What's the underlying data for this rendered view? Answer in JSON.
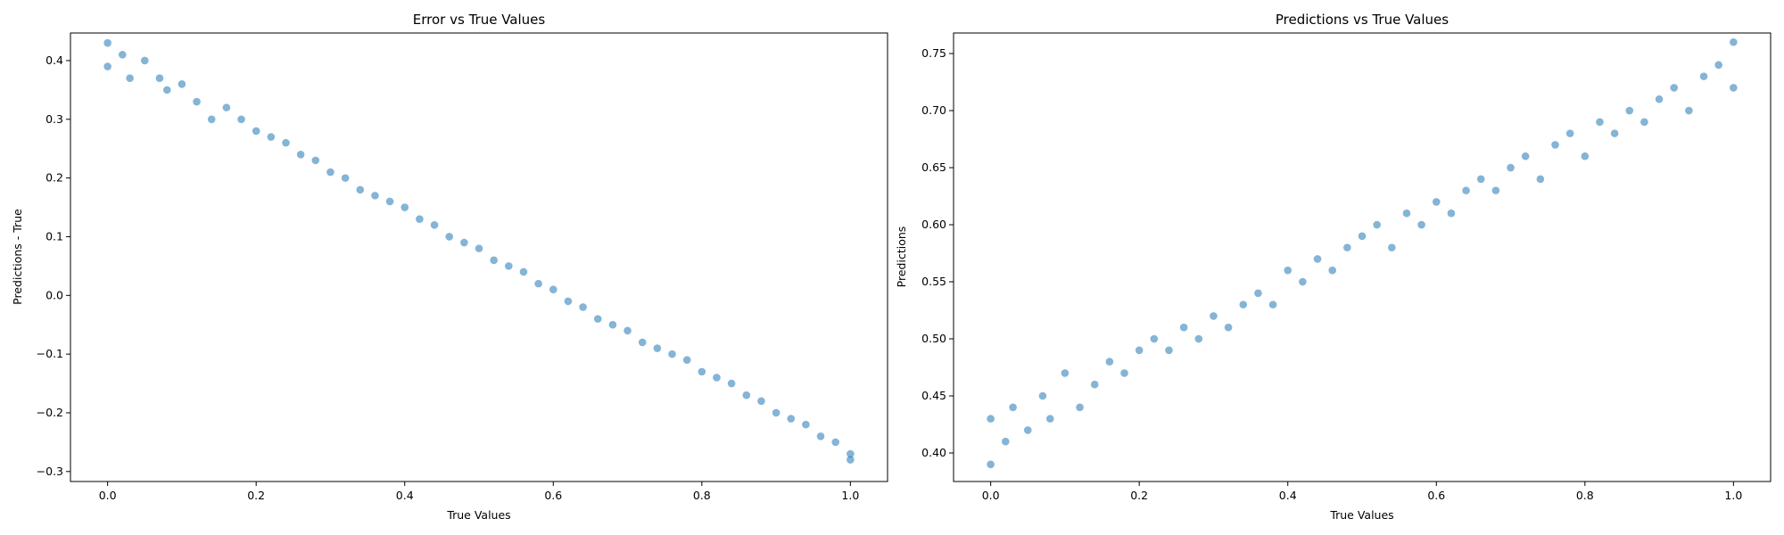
{
  "chart_data": [
    {
      "type": "scatter",
      "title": "Error vs True Values",
      "xlabel": "True Values",
      "ylabel": "Predictions - True",
      "xlim": [
        -0.05,
        1.05
      ],
      "ylim": [
        -0.317,
        0.447
      ],
      "xticks": [
        0.0,
        0.2,
        0.4,
        0.6,
        0.8,
        1.0
      ],
      "xtick_labels": [
        "0.0",
        "0.2",
        "0.4",
        "0.6",
        "0.8",
        "1.0"
      ],
      "yticks": [
        -0.3,
        -0.2,
        -0.1,
        0.0,
        0.1,
        0.2,
        0.3,
        0.4
      ],
      "ytick_labels": [
        "−0.3",
        "−0.2",
        "−0.1",
        "0.0",
        "0.1",
        "0.2",
        "0.3",
        "0.4"
      ],
      "grid": false,
      "point_color": "#1f77b4",
      "point_alpha": 0.55,
      "series": [
        {
          "x": [
            0.0,
            0.0,
            0.02,
            0.03,
            0.05,
            0.07,
            0.08,
            0.1,
            0.12,
            0.14,
            0.16,
            0.18,
            0.2,
            0.22,
            0.24,
            0.26,
            0.28,
            0.3,
            0.32,
            0.34,
            0.36,
            0.38,
            0.4,
            0.42,
            0.44,
            0.46,
            0.48,
            0.5,
            0.52,
            0.54,
            0.56,
            0.58,
            0.6,
            0.62,
            0.64,
            0.66,
            0.68,
            0.7,
            0.72,
            0.74,
            0.76,
            0.78,
            0.8,
            0.82,
            0.84,
            0.86,
            0.88,
            0.9,
            0.92,
            0.94,
            0.96,
            0.98,
            1.0,
            1.0
          ],
          "y": [
            0.43,
            0.39,
            0.41,
            0.37,
            0.4,
            0.37,
            0.35,
            0.36,
            0.33,
            0.3,
            0.32,
            0.3,
            0.28,
            0.27,
            0.26,
            0.24,
            0.23,
            0.21,
            0.2,
            0.18,
            0.17,
            0.16,
            0.15,
            0.13,
            0.12,
            0.1,
            0.09,
            0.08,
            0.06,
            0.05,
            0.04,
            0.02,
            0.01,
            -0.01,
            -0.02,
            -0.04,
            -0.05,
            -0.06,
            -0.08,
            -0.09,
            -0.1,
            -0.11,
            -0.13,
            -0.14,
            -0.15,
            -0.17,
            -0.18,
            -0.2,
            -0.21,
            -0.22,
            -0.24,
            -0.25,
            -0.27,
            -0.28
          ]
        }
      ]
    },
    {
      "type": "scatter",
      "title": "Predictions vs True Values",
      "xlabel": "True Values",
      "ylabel": "Predictions",
      "xlim": [
        -0.05,
        1.05
      ],
      "ylim": [
        0.375,
        0.768
      ],
      "xticks": [
        0.0,
        0.2,
        0.4,
        0.6,
        0.8,
        1.0
      ],
      "xtick_labels": [
        "0.0",
        "0.2",
        "0.4",
        "0.6",
        "0.8",
        "1.0"
      ],
      "yticks": [
        0.4,
        0.45,
        0.5,
        0.55,
        0.6,
        0.65,
        0.7,
        0.75
      ],
      "ytick_labels": [
        "0.40",
        "0.45",
        "0.50",
        "0.55",
        "0.60",
        "0.65",
        "0.70",
        "0.75"
      ],
      "grid": false,
      "point_color": "#1f77b4",
      "point_alpha": 0.55,
      "series": [
        {
          "x": [
            0.0,
            0.0,
            0.02,
            0.03,
            0.05,
            0.07,
            0.08,
            0.1,
            0.12,
            0.14,
            0.16,
            0.18,
            0.2,
            0.22,
            0.24,
            0.26,
            0.28,
            0.3,
            0.32,
            0.34,
            0.36,
            0.38,
            0.4,
            0.42,
            0.44,
            0.46,
            0.48,
            0.5,
            0.52,
            0.54,
            0.56,
            0.58,
            0.6,
            0.62,
            0.64,
            0.66,
            0.68,
            0.7,
            0.72,
            0.74,
            0.76,
            0.78,
            0.8,
            0.82,
            0.84,
            0.86,
            0.88,
            0.9,
            0.92,
            0.94,
            0.96,
            0.98,
            1.0,
            1.0
          ],
          "y": [
            0.39,
            0.43,
            0.41,
            0.44,
            0.42,
            0.45,
            0.43,
            0.47,
            0.44,
            0.46,
            0.48,
            0.47,
            0.49,
            0.5,
            0.49,
            0.51,
            0.5,
            0.52,
            0.51,
            0.53,
            0.54,
            0.53,
            0.56,
            0.55,
            0.57,
            0.56,
            0.58,
            0.59,
            0.6,
            0.58,
            0.61,
            0.6,
            0.62,
            0.61,
            0.63,
            0.64,
            0.63,
            0.65,
            0.66,
            0.64,
            0.67,
            0.68,
            0.66,
            0.69,
            0.68,
            0.7,
            0.69,
            0.71,
            0.72,
            0.7,
            0.73,
            0.74,
            0.72,
            0.76
          ]
        }
      ]
    }
  ]
}
